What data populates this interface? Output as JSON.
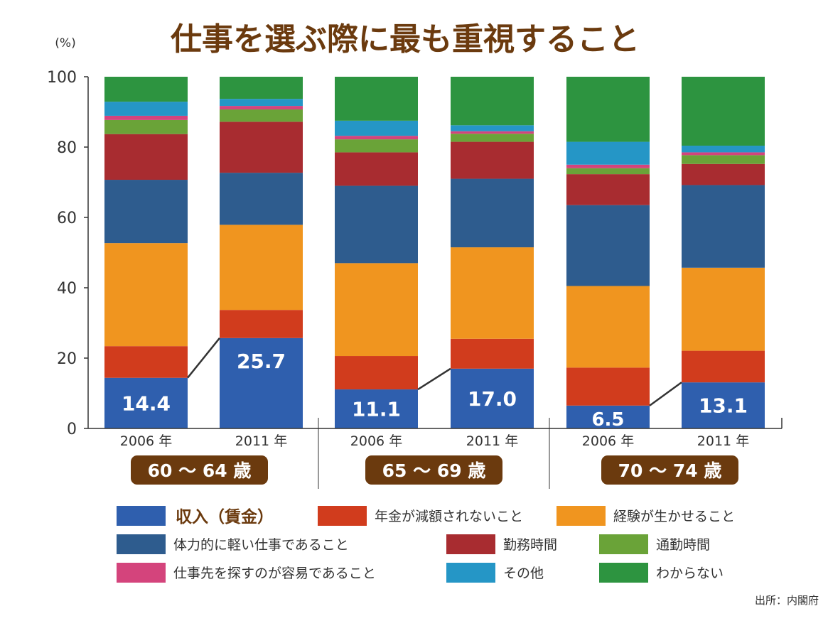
{
  "chart_data": {
    "type": "bar",
    "stacked": true,
    "title": "仕事を選ぶ際に最も重視すること",
    "ylabel": "(%)",
    "ylim": [
      0,
      100
    ],
    "yticks": [
      0,
      20,
      40,
      60,
      80,
      100
    ],
    "categories": [
      "2006 年",
      "2011 年",
      "2006 年",
      "2011 年",
      "2006 年",
      "2011 年"
    ],
    "groups": [
      {
        "label": "60 〜 64 歳",
        "members": [
          0,
          1
        ]
      },
      {
        "label": "65 〜 69 歳",
        "members": [
          2,
          3
        ]
      },
      {
        "label": "70 〜 74 歳",
        "members": [
          4,
          5
        ]
      }
    ],
    "series": [
      {
        "name": "収入（賃金）",
        "color": "#2f5fae",
        "values": [
          14.4,
          25.7,
          11.1,
          17.0,
          6.5,
          13.1
        ],
        "labels": [
          "14.4",
          "25.7",
          "11.1",
          "17.0",
          "6.5",
          "13.1"
        ]
      },
      {
        "name": "年金が減額されないこと",
        "color": "#d13c1d",
        "values": [
          9.0,
          8.0,
          9.5,
          8.5,
          10.8,
          9.0
        ]
      },
      {
        "name": "経験が生かせること",
        "color": "#f0951f",
        "values": [
          29.3,
          24.2,
          26.4,
          26.0,
          23.2,
          23.6
        ]
      },
      {
        "name": "体力的に軽い仕事であること",
        "color": "#2e5c8e",
        "values": [
          18.0,
          14.8,
          22.0,
          19.5,
          23.0,
          23.5
        ]
      },
      {
        "name": "勤務時間",
        "color": "#a82c30",
        "values": [
          13.0,
          14.5,
          9.5,
          10.5,
          8.8,
          6.0
        ]
      },
      {
        "name": "通勤時間",
        "color": "#6aa338",
        "values": [
          4.0,
          3.5,
          3.7,
          2.3,
          1.7,
          2.5
        ]
      },
      {
        "name": "仕事先を探すのが容易であること",
        "color": "#d4447c",
        "values": [
          1.2,
          1.0,
          1.0,
          0.7,
          1.0,
          0.8
        ]
      },
      {
        "name": "その他",
        "color": "#2596c6",
        "values": [
          4.0,
          2.0,
          4.3,
          1.7,
          6.5,
          1.9
        ]
      },
      {
        "name": "わからない",
        "color": "#2d9440",
        "values": [
          7.1,
          6.3,
          12.5,
          13.8,
          18.5,
          19.6
        ]
      }
    ],
    "connectors": [
      [
        0,
        1
      ],
      [
        2,
        3
      ],
      [
        4,
        5
      ]
    ],
    "source": "出所：内閣府"
  },
  "colors": {
    "title": "#6b3a0e",
    "group_badge": "#6b3a0e",
    "axis": "#333333"
  }
}
